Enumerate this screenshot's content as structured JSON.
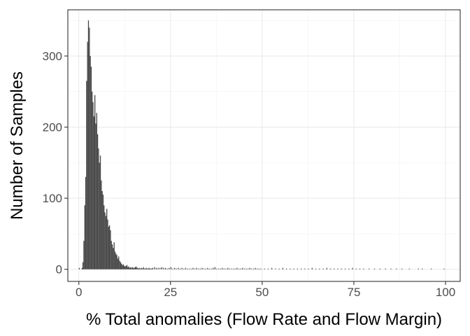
{
  "chart_data": {
    "type": "bar",
    "subtype": "histogram",
    "title": "",
    "xlabel": "% Total anomalies (Flow Rate and Flow Margin)",
    "ylabel": "Number of Samples",
    "xlim": [
      -3,
      104
    ],
    "ylim": [
      -17,
      365
    ],
    "x_ticks": [
      0,
      25,
      50,
      75,
      100
    ],
    "x_tick_labels": [
      "0",
      "25",
      "50",
      "75",
      "100"
    ],
    "y_ticks": [
      0,
      100,
      200,
      300
    ],
    "y_tick_labels": [
      "0",
      "100",
      "200",
      "300"
    ],
    "grid": true,
    "bar_color": "#474747",
    "bin_width": 0.25,
    "bins_x_start": [
      0.0,
      0.25,
      0.5,
      0.75,
      1.0,
      1.25,
      1.5,
      1.75,
      2.0,
      2.25,
      2.5,
      2.75,
      3.0,
      3.25,
      3.5,
      3.75,
      4.0,
      4.25,
      4.5,
      4.75,
      5.0,
      5.25,
      5.5,
      5.75,
      6.0,
      6.25,
      6.5,
      6.75,
      7.0,
      7.25,
      7.5,
      7.75,
      8.0,
      8.25,
      8.5,
      8.75,
      9.0,
      9.25,
      9.5,
      9.75,
      10.0,
      10.25,
      10.5,
      10.75,
      11.0,
      11.25,
      11.5,
      11.75,
      12.0,
      12.25,
      12.5,
      12.75,
      13.0,
      13.25,
      13.5,
      13.75,
      14.0,
      14.25,
      14.5,
      14.75,
      15.0,
      15.25,
      15.5,
      15.75,
      16.0,
      16.25,
      16.5,
      16.75,
      17.0,
      17.25,
      17.5,
      17.75,
      18.0,
      18.25,
      18.5,
      18.75,
      19.0,
      19.25,
      19.5,
      19.75,
      20.0,
      20.5,
      21.0,
      21.5,
      22.0,
      22.5,
      23.0,
      23.5,
      24.0,
      24.5,
      25.0,
      25.5,
      26.0,
      26.5,
      27.0,
      27.5,
      28.0,
      28.5,
      29.0,
      29.5,
      30.0,
      30.5,
      31.0,
      31.5,
      32.0,
      32.5,
      33.0,
      33.5,
      34.0,
      34.5,
      35.0,
      35.5,
      36.0,
      36.5,
      37.0,
      37.5,
      38.0,
      38.5,
      39.0,
      39.5,
      40.0,
      40.5,
      41.0,
      41.5,
      42.0,
      42.5,
      43.0,
      43.5,
      44.0,
      44.5,
      45.0,
      45.5,
      46.0,
      46.5,
      47.0,
      47.5,
      48.0,
      48.5,
      49.0,
      49.5,
      50.5,
      51.5,
      52.5,
      53.5,
      54.5,
      55.5,
      56.5,
      57.5,
      58.5,
      59.5,
      60.5,
      61.5,
      62.5,
      63.5,
      64.5,
      65.5,
      66.5,
      67.5,
      68.5,
      69.5,
      70.5,
      71.5,
      72.5,
      73.5,
      74.5,
      75.5,
      76.5,
      77.5,
      79.0,
      80.5,
      82.0,
      83.5,
      85.0,
      86.5,
      88.0,
      90.0,
      92.5,
      93.5,
      96.0,
      99.5
    ],
    "bins_count": [
      2,
      0,
      0,
      2,
      10,
      40,
      90,
      130,
      265,
      320,
      350,
      340,
      300,
      285,
      250,
      235,
      215,
      245,
      205,
      220,
      190,
      170,
      150,
      160,
      125,
      110,
      105,
      90,
      80,
      75,
      85,
      70,
      60,
      62,
      55,
      40,
      35,
      30,
      38,
      25,
      22,
      20,
      15,
      18,
      12,
      10,
      8,
      6,
      7,
      5,
      4,
      5,
      6,
      3,
      4,
      2,
      3,
      2,
      3,
      2,
      2,
      3,
      4,
      2,
      2,
      1,
      2,
      1,
      2,
      1,
      3,
      1,
      1,
      2,
      1,
      1,
      2,
      1,
      1,
      1,
      2,
      3,
      2,
      2,
      2,
      3,
      2,
      2,
      1,
      2,
      3,
      1,
      2,
      1,
      2,
      1,
      2,
      1,
      2,
      1,
      1,
      1,
      2,
      1,
      2,
      1,
      1,
      2,
      1,
      1,
      2,
      1,
      1,
      2,
      3,
      1,
      1,
      1,
      2,
      1,
      1,
      2,
      1,
      1,
      1,
      1,
      2,
      1,
      1,
      2,
      1,
      1,
      1,
      2,
      1,
      1,
      2,
      1,
      1,
      1,
      1,
      1,
      2,
      1,
      1,
      2,
      1,
      1,
      1,
      1,
      1,
      1,
      1,
      2,
      1,
      1,
      1,
      2,
      1,
      1,
      1,
      1,
      1,
      1,
      2,
      1,
      1,
      1,
      1,
      1,
      1,
      1,
      1,
      1,
      1,
      1,
      1,
      1,
      1,
      1
    ]
  }
}
